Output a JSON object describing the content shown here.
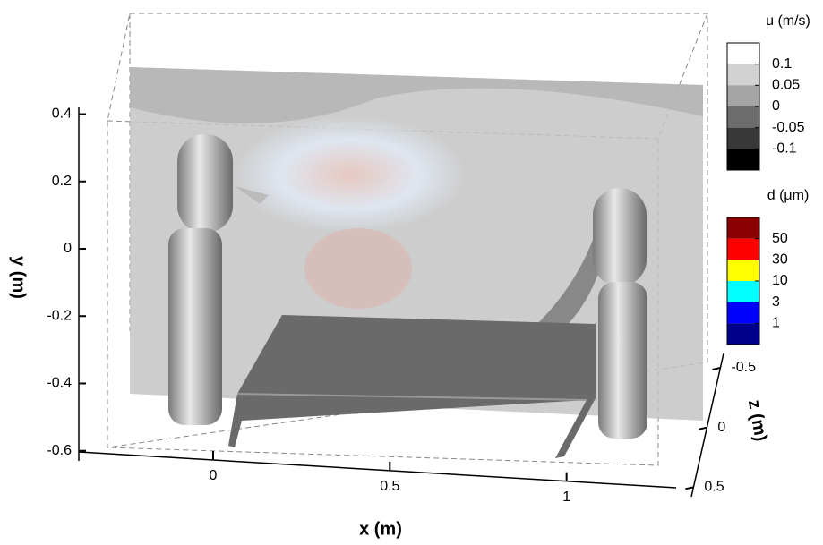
{
  "chart_data": {
    "type": "scene3d",
    "xlabel": "x (m)",
    "ylabel": "y (m)",
    "zlabel": "z (m)",
    "xlim": [
      -0.38,
      1.31
    ],
    "xticks": [
      0,
      0.5,
      1
    ],
    "ylim": [
      -0.63,
      0.42
    ],
    "yticks": [
      0.4,
      0.2,
      0,
      -0.2,
      -0.4,
      -0.6
    ],
    "zlim": [
      -0.62,
      0.58
    ],
    "zticks": [
      -0.5,
      0,
      0.5
    ],
    "colorbars": [
      {
        "title": "u (m/s)",
        "ticks": [
          0.1,
          0.05,
          0,
          -0.05,
          -0.1
        ],
        "colors": [
          "#ffffff",
          "#d2d2d2",
          "#a4a4a4",
          "#6c6c6c",
          "#383838",
          "#000000"
        ]
      },
      {
        "title": "d (μm)",
        "ticks": [
          50,
          30,
          10,
          3,
          1
        ],
        "colors": [
          "#8b0000",
          "#ff0000",
          "#ffff00",
          "#00ffff",
          "#0000ff",
          "#00008b"
        ]
      }
    ]
  }
}
